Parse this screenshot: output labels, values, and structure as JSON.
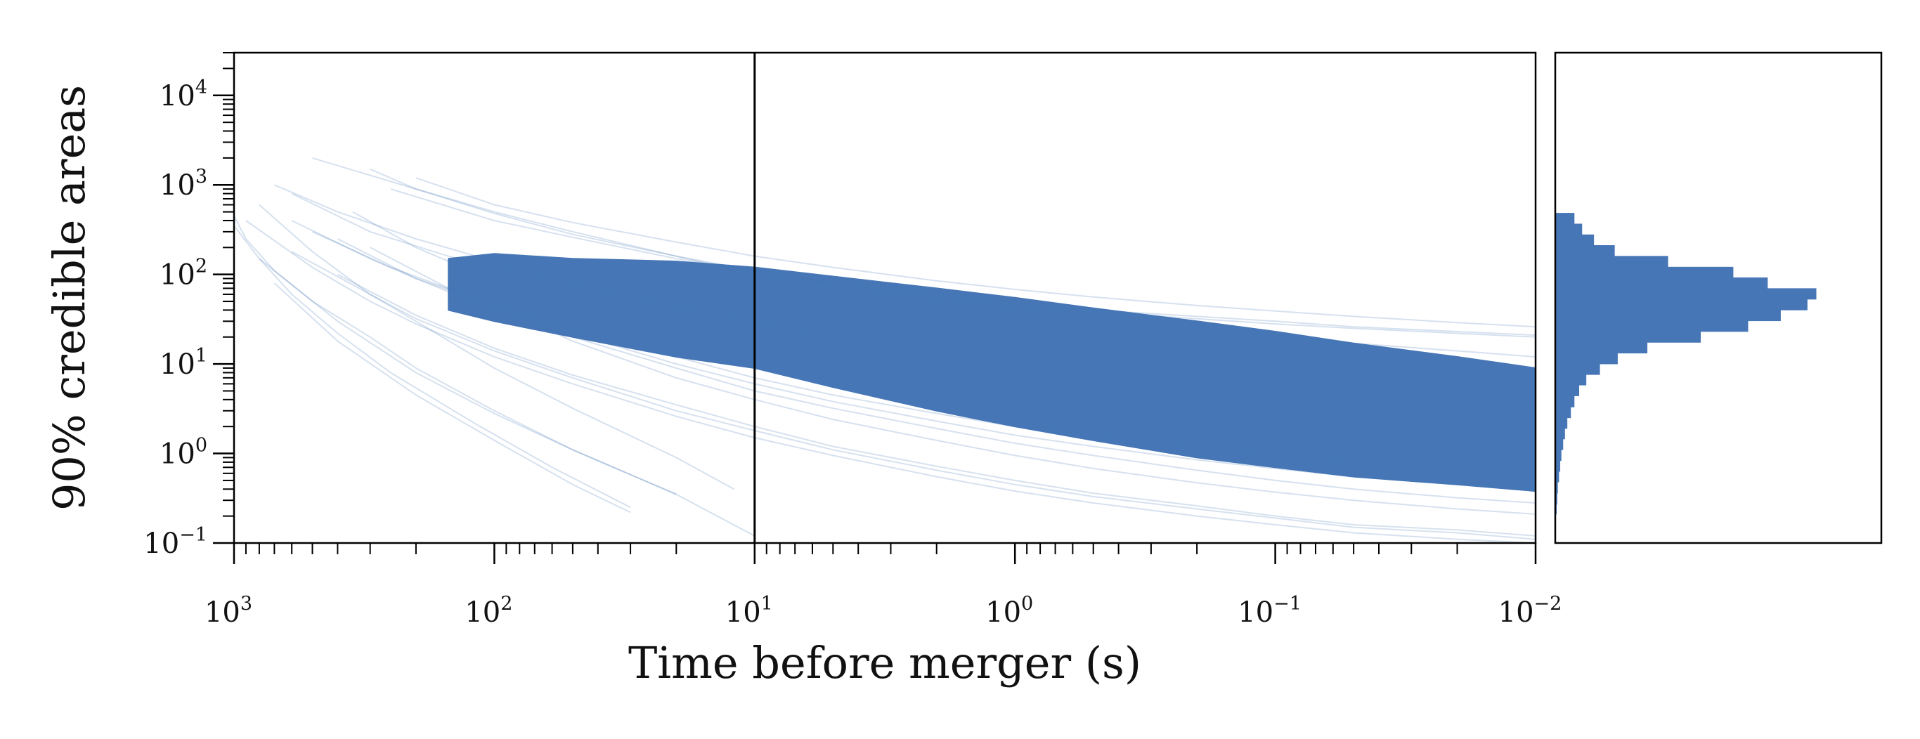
{
  "chart_data": [
    {
      "type": "line",
      "xlabel": "Time before merger (s)",
      "ylabel": "90% credible areas",
      "x_scale": "log",
      "x_reversed": true,
      "y_scale": "log",
      "xlim": [
        1000,
        0.01
      ],
      "ylim": [
        0.1,
        30000
      ],
      "x_ticks": [
        {
          "base": "10",
          "exp": "3",
          "value": 1000
        },
        {
          "base": "10",
          "exp": "2",
          "value": 100
        },
        {
          "base": "10",
          "exp": "1",
          "value": 10
        },
        {
          "base": "10",
          "exp": "0",
          "value": 1
        },
        {
          "base": "10",
          "exp": "−1",
          "value": 0.1
        },
        {
          "base": "10",
          "exp": "−2",
          "value": 0.01
        }
      ],
      "y_ticks": [
        {
          "base": "10",
          "exp": "−1",
          "value": 0.1
        },
        {
          "base": "10",
          "exp": "0",
          "value": 1
        },
        {
          "base": "10",
          "exp": "1",
          "value": 10
        },
        {
          "base": "10",
          "exp": "2",
          "value": 100
        },
        {
          "base": "10",
          "exp": "3",
          "value": 1000
        },
        {
          "base": "10",
          "exp": "4",
          "value": 10000
        }
      ],
      "vertical_line_x": 10,
      "band": {
        "x": [
          150,
          100,
          50,
          20,
          10,
          5,
          2,
          1,
          0.5,
          0.2,
          0.1,
          0.05,
          0.02,
          0.01
        ],
        "upper": [
          150,
          170,
          150,
          140,
          120,
          95,
          70,
          55,
          42,
          30,
          23,
          17,
          12,
          9
        ],
        "lower": [
          40,
          30,
          20,
          12,
          9,
          5.5,
          3,
          2,
          1.4,
          0.9,
          0.7,
          0.55,
          0.45,
          0.38
        ]
      },
      "faint_curves": [
        {
          "x": [
            500,
            200,
            100,
            50,
            20,
            10,
            5,
            2,
            1,
            0.5,
            0.2,
            0.1,
            0.05,
            0.02,
            0.01
          ],
          "y": [
            2000,
            900,
            500,
            300,
            160,
            100,
            70,
            48,
            38,
            30,
            24,
            20,
            17,
            14,
            12
          ]
        },
        {
          "x": [
            300,
            200,
            100,
            50,
            20,
            10,
            5,
            2,
            1,
            0.5,
            0.2,
            0.1,
            0.05,
            0.02,
            0.01
          ],
          "y": [
            1500,
            900,
            480,
            280,
            160,
            110,
            80,
            55,
            45,
            38,
            32,
            28,
            25,
            22,
            20
          ]
        },
        {
          "x": [
            200,
            100,
            50,
            20,
            10,
            5,
            2,
            1,
            0.5,
            0.2,
            0.1,
            0.05,
            0.02,
            0.01
          ],
          "y": [
            1200,
            600,
            380,
            230,
            160,
            120,
            85,
            68,
            56,
            45,
            39,
            34,
            29,
            26
          ]
        },
        {
          "x": [
            250,
            100,
            50,
            20,
            10,
            5,
            2,
            1,
            0.5,
            0.2,
            0.1,
            0.05,
            0.02,
            0.01
          ],
          "y": [
            900,
            400,
            260,
            150,
            110,
            80,
            60,
            48,
            40,
            34,
            30,
            26,
            23,
            21
          ]
        },
        {
          "x": [
            700,
            400,
            200,
            100,
            50,
            20,
            10,
            5,
            2,
            1,
            0.5,
            0.2,
            0.1,
            0.05,
            0.02,
            0.01
          ],
          "y": [
            1000,
            500,
            250,
            140,
            85,
            45,
            28,
            18,
            11,
            7.5,
            5.5,
            4,
            3.2,
            2.6,
            2.1,
            1.8
          ]
        },
        {
          "x": [
            600,
            300,
            200,
            100,
            50,
            20,
            10,
            5,
            2,
            1,
            0.5,
            0.2,
            0.1,
            0.05,
            0.02,
            0.01
          ],
          "y": [
            400,
            150,
            90,
            45,
            25,
            12,
            7,
            4.5,
            2.8,
            2,
            1.5,
            1.1,
            0.9,
            0.75,
            0.6,
            0.52
          ]
        },
        {
          "x": [
            500,
            250,
            100,
            50,
            20,
            10,
            5,
            2,
            1,
            0.5,
            0.2,
            0.1,
            0.05,
            0.02,
            0.01
          ],
          "y": [
            300,
            120,
            45,
            22,
            10,
            6,
            3.8,
            2.3,
            1.6,
            1.2,
            0.85,
            0.68,
            0.55,
            0.45,
            0.4
          ]
        },
        {
          "x": [
            400,
            200,
            100,
            50,
            20,
            10,
            5,
            2,
            1,
            0.5,
            0.2,
            0.1,
            0.05,
            0.02,
            0.01
          ],
          "y": [
            250,
            90,
            40,
            20,
            9,
            5,
            3.2,
            1.9,
            1.3,
            0.95,
            0.65,
            0.5,
            0.4,
            0.32,
            0.28
          ]
        },
        {
          "x": [
            300,
            150,
            100,
            50,
            20,
            10,
            5,
            2,
            1,
            0.5,
            0.2,
            0.1,
            0.05,
            0.02,
            0.01
          ],
          "y": [
            200,
            70,
            45,
            18,
            7,
            4,
            2.4,
            1.4,
            0.95,
            0.68,
            0.47,
            0.37,
            0.3,
            0.24,
            0.21
          ]
        },
        {
          "x": [
            900,
            500,
            300,
            200,
            100,
            50,
            20,
            10,
            5,
            2,
            1,
            0.5,
            0.2,
            0.1,
            0.05,
            0.02,
            0.01
          ],
          "y": [
            400,
            120,
            50,
            28,
            12,
            6,
            2.6,
            1.5,
            0.95,
            0.55,
            0.38,
            0.28,
            0.2,
            0.16,
            0.13,
            0.11,
            0.1
          ]
        },
        {
          "x": [
            600,
            300,
            200,
            100,
            50,
            20,
            10,
            5,
            2,
            1,
            0.5,
            0.2,
            0.1,
            0.05,
            0.02,
            0.01
          ],
          "y": [
            180,
            60,
            32,
            14,
            7,
            3,
            1.8,
            1.1,
            0.65,
            0.45,
            0.33,
            0.24,
            0.19,
            0.15,
            0.13,
            0.11
          ]
        },
        {
          "x": [
            400,
            200,
            100,
            50,
            20,
            10,
            5,
            2,
            1,
            0.5,
            0.2,
            0.1,
            0.05,
            0.02,
            0.01
          ],
          "y": [
            100,
            35,
            15,
            7.5,
            3.5,
            2,
            1.2,
            0.72,
            0.5,
            0.36,
            0.26,
            0.2,
            0.16,
            0.14,
            0.12
          ]
        },
        {
          "x": [
            800,
            500,
            300,
            200,
            100,
            50,
            20,
            12
          ],
          "y": [
            600,
            180,
            60,
            30,
            9,
            3.2,
            0.9,
            0.4
          ]
        },
        {
          "x": [
            800,
            400,
            200,
            100,
            50,
            20,
            10
          ],
          "y": [
            150,
            30,
            8,
            2.8,
            1.1,
            0.35,
            0.12
          ]
        },
        {
          "x": [
            700,
            400,
            200,
            100,
            50,
            30
          ],
          "y": [
            80,
            18,
            4.5,
            1.4,
            0.45,
            0.22
          ]
        },
        {
          "x": [
            1100,
            1000,
            900,
            700,
            500,
            300,
            200,
            100,
            50,
            20
          ],
          "y": [
            700,
            450,
            250,
            110,
            50,
            20,
            9,
            3,
            1.1,
            0.35
          ]
        },
        {
          "x": [
            1100,
            1000,
            800,
            600,
            400,
            250,
            120,
            60,
            30
          ],
          "y": [
            600,
            350,
            150,
            60,
            22,
            8,
            2.2,
            0.7,
            0.25
          ]
        },
        {
          "x": [
            600,
            300,
            150,
            80,
            40,
            20,
            10,
            5,
            2,
            1,
            0.5,
            0.2,
            0.1,
            0.05,
            0.02,
            0.01
          ],
          "y": [
            800,
            300,
            160,
            100,
            65,
            42,
            30,
            22,
            15,
            11.5,
            9,
            7,
            5.8,
            5,
            4.2,
            3.7
          ]
        },
        {
          "x": [
            350,
            200,
            100,
            50,
            20,
            10,
            5,
            2,
            1,
            0.5,
            0.2,
            0.1,
            0.05,
            0.02,
            0.01
          ],
          "y": [
            500,
            200,
            85,
            40,
            17,
            9.5,
            5.8,
            3.4,
            2.4,
            1.8,
            1.3,
            1.05,
            0.88,
            0.74,
            0.66
          ]
        }
      ]
    },
    {
      "type": "bar",
      "orientation": "horizontal",
      "bin_edges_y": [
        0.21,
        0.27,
        0.36,
        0.48,
        0.63,
        0.83,
        1.1,
        1.45,
        1.9,
        2.5,
        3.3,
        4.4,
        5.8,
        7.6,
        10,
        13.2,
        17.4,
        23,
        30.3,
        40,
        52.8,
        69.7,
        92,
        121,
        160,
        211,
        278,
        367,
        484
      ],
      "counts": [
        2,
        3,
        4,
        6,
        8,
        10,
        13,
        16,
        20,
        26,
        32,
        40,
        52,
        75,
        105,
        155,
        245,
        325,
        380,
        425,
        440,
        358,
        300,
        190,
        100,
        65,
        45,
        32
      ]
    }
  ]
}
